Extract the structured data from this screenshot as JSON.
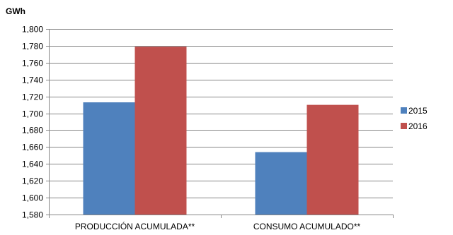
{
  "chart_data": {
    "type": "bar",
    "unit_label": "GWh",
    "categories": [
      "PRODUCCIÓN ACUMULADA**",
      "CONSUMO ACUMULADO**"
    ],
    "series": [
      {
        "name": "2015",
        "color": "#4f81bd",
        "values": [
          1713,
          1654
        ]
      },
      {
        "name": "2016",
        "color": "#c0504d",
        "values": [
          1779,
          1710
        ]
      }
    ],
    "ylim": [
      1580,
      1800
    ],
    "ytick_step": 20,
    "ytick_labels": [
      "1,580",
      "1,600",
      "1,620",
      "1,640",
      "1,660",
      "1,680",
      "1,700",
      "1,720",
      "1,740",
      "1,760",
      "1,780",
      "1,800"
    ],
    "grid": true,
    "legend_position": "right"
  }
}
